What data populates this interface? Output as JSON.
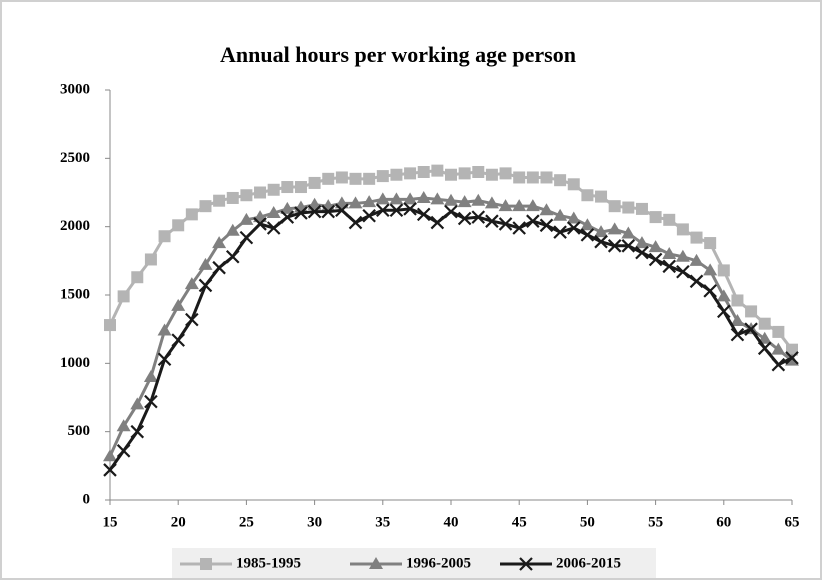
{
  "chart_data": {
    "type": "line",
    "title": "Annual hours per working age person",
    "x": [
      15,
      16,
      17,
      18,
      19,
      20,
      21,
      22,
      23,
      24,
      25,
      26,
      27,
      28,
      29,
      30,
      31,
      32,
      33,
      34,
      35,
      36,
      37,
      38,
      39,
      40,
      41,
      42,
      43,
      44,
      45,
      46,
      47,
      48,
      49,
      50,
      51,
      52,
      53,
      54,
      55,
      56,
      57,
      58,
      59,
      60,
      61,
      62,
      63,
      64,
      65
    ],
    "series": [
      {
        "name": "1985-1995",
        "color": "#b4b4b4",
        "marker": "square",
        "values": [
          1280,
          1490,
          1630,
          1760,
          1930,
          2010,
          2090,
          2150,
          2190,
          2210,
          2230,
          2250,
          2270,
          2290,
          2290,
          2320,
          2350,
          2360,
          2350,
          2350,
          2370,
          2380,
          2390,
          2400,
          2410,
          2380,
          2390,
          2400,
          2380,
          2390,
          2360,
          2360,
          2360,
          2340,
          2310,
          2230,
          2220,
          2150,
          2140,
          2130,
          2070,
          2050,
          1980,
          1920,
          1880,
          1680,
          1460,
          1380,
          1290,
          1230,
          1100
        ]
      },
      {
        "name": "1996-2005",
        "color": "#808080",
        "marker": "triangle",
        "values": [
          320,
          540,
          700,
          900,
          1240,
          1420,
          1580,
          1720,
          1880,
          1970,
          2050,
          2070,
          2100,
          2130,
          2140,
          2160,
          2150,
          2170,
          2170,
          2180,
          2200,
          2200,
          2200,
          2210,
          2200,
          2190,
          2180,
          2190,
          2170,
          2150,
          2150,
          2150,
          2120,
          2080,
          2060,
          2010,
          1960,
          1980,
          1950,
          1880,
          1850,
          1800,
          1780,
          1750,
          1680,
          1490,
          1310,
          1250,
          1180,
          1100,
          1020
        ]
      },
      {
        "name": "2006-2015",
        "color": "#1a1a1a",
        "marker": "cross",
        "values": [
          220,
          360,
          500,
          720,
          1030,
          1170,
          1320,
          1570,
          1700,
          1780,
          1920,
          2020,
          1990,
          2070,
          2100,
          2110,
          2110,
          2120,
          2030,
          2080,
          2120,
          2120,
          2130,
          2090,
          2030,
          2110,
          2060,
          2070,
          2040,
          2020,
          1990,
          2040,
          2010,
          1960,
          1990,
          1940,
          1890,
          1860,
          1860,
          1810,
          1760,
          1710,
          1670,
          1600,
          1530,
          1380,
          1210,
          1250,
          1110,
          990,
          1040
        ]
      }
    ],
    "xlim": [
      15,
      65
    ],
    "xticks": [
      15,
      20,
      25,
      30,
      35,
      40,
      45,
      50,
      55,
      60,
      65
    ],
    "ylim": [
      0,
      3000
    ],
    "yticks": [
      0,
      500,
      1000,
      1500,
      2000,
      2500,
      3000
    ],
    "grid": false,
    "legend": "bottom"
  }
}
